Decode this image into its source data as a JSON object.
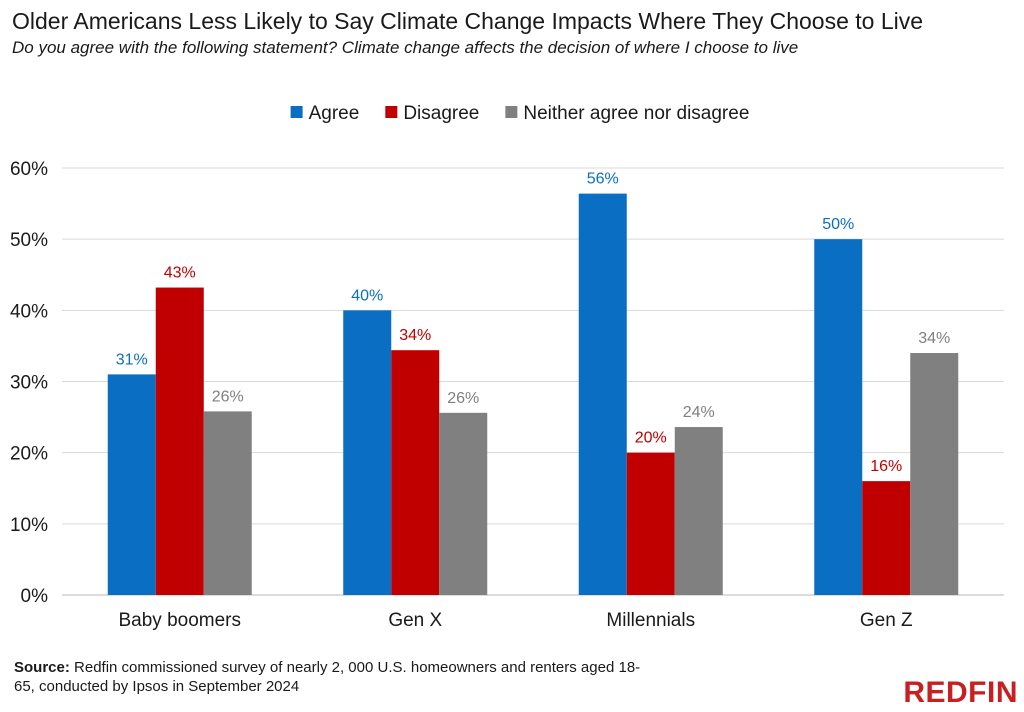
{
  "header": {
    "title": "Older Americans Less Likely to Say Climate Change Impacts Where They Choose to Live",
    "subtitle": "Do you agree with the following statement? Climate change affects the decision of where I choose to live"
  },
  "footer": {
    "source_label": "Source:",
    "source_text": " Redfin commissioned survey of nearly 2, 000 U.S. homeowners and renters aged 18-65, conducted by Ipsos in September 2024",
    "brand": "REDFIN"
  },
  "chart_data": {
    "type": "bar",
    "title": "Older Americans Less Likely to Say Climate Change Impacts Where They Choose to Live",
    "xlabel": "",
    "ylabel": "",
    "ylim": [
      0,
      60
    ],
    "yticks": [
      0,
      10,
      20,
      30,
      40,
      50,
      60
    ],
    "ytick_labels": [
      "0%",
      "10%",
      "20%",
      "30%",
      "40%",
      "50%",
      "60%"
    ],
    "grid": true,
    "legend_position": "top",
    "categories": [
      "Baby boomers",
      "Gen X",
      "Millennials",
      "Gen Z"
    ],
    "series": [
      {
        "name": "Agree",
        "color": "#0a6fc2",
        "values": [
          31,
          40,
          56.4,
          50
        ],
        "labels": [
          "31%",
          "40%",
          "56%",
          "50%"
        ]
      },
      {
        "name": "Disagree",
        "color": "#c00000",
        "values": [
          43.2,
          34.4,
          20,
          16
        ],
        "labels": [
          "43%",
          "34%",
          "20%",
          "16%"
        ]
      },
      {
        "name": "Neither agree nor disagree",
        "color": "#808080",
        "values": [
          25.8,
          25.6,
          23.6,
          34
        ],
        "labels": [
          "26%",
          "26%",
          "24%",
          "34%"
        ]
      }
    ]
  }
}
